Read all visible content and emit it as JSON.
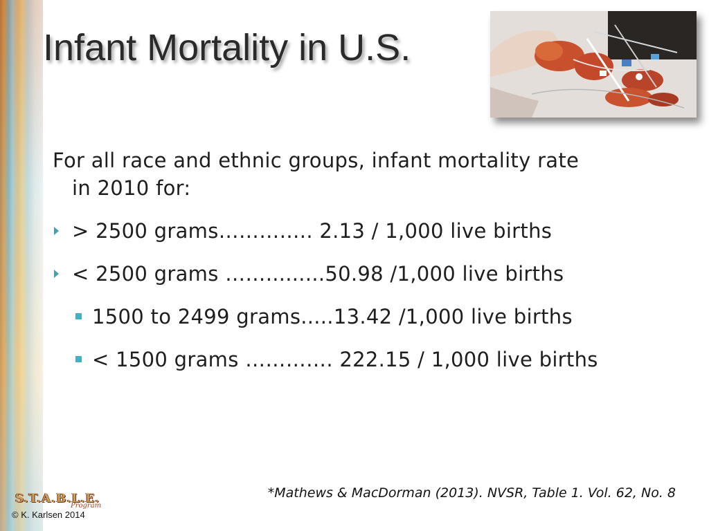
{
  "slide": {
    "title": "Infant Mortality in U.S."
  },
  "intro": {
    "line1": "For all race and ethnic groups, infant mortality rate",
    "line2": "in 2010 for:"
  },
  "bullets": [
    {
      "level": 1,
      "text": "> 2500 grams…………..   2.13 / 1,000 live births"
    },
    {
      "level": 1,
      "text": "< 2500 grams …….........50.98 /1,000 live births"
    },
    {
      "level": 2,
      "text": "1500 to 2499 grams.....13.42 /1,000 live births"
    },
    {
      "level": 2,
      "text": "< 1500 grams …………. 222.15 / 1,000 live births"
    }
  ],
  "citation": "*Mathews & MacDorman (2013). NVSR, Table 1. Vol. 62, No. 8",
  "logo": {
    "text": "S.T.A.B.L.E.",
    "subtext": "Program"
  },
  "copyright": "© K. Karlsen 2014",
  "colors": {
    "bullet_l1": "#4a9fae",
    "bullet_l2": "#3fb2c8",
    "title": "#2a2a2a"
  },
  "icons": {
    "bullet_l1": "triangle-right-bullet-icon",
    "bullet_l2": "square-bullet-icon"
  }
}
